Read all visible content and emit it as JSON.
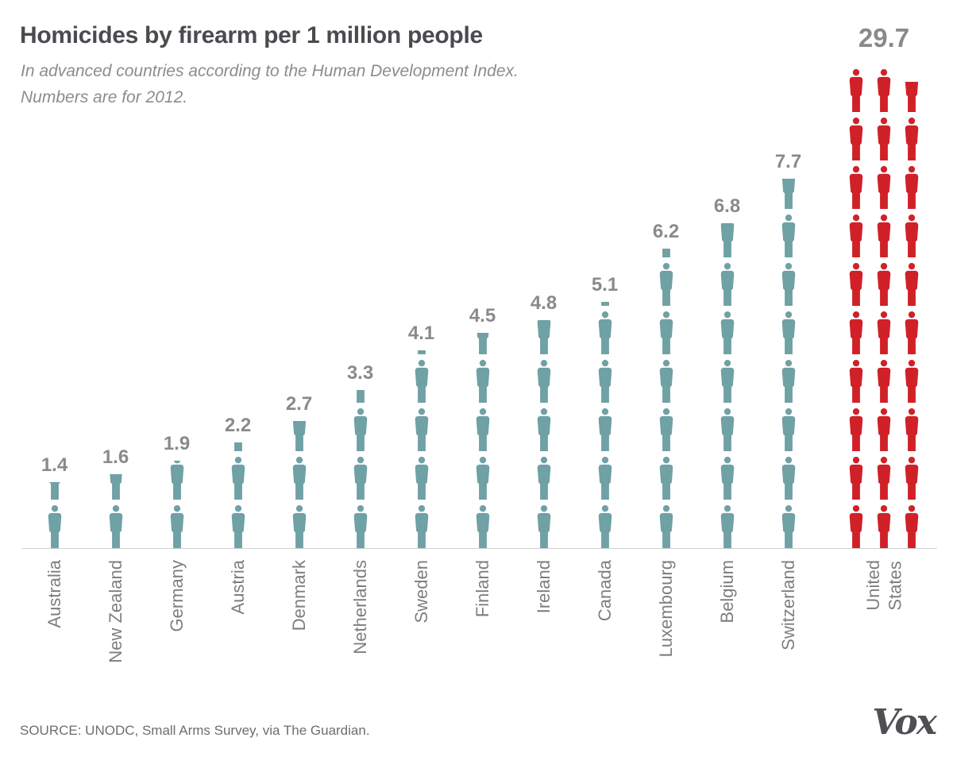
{
  "header": {
    "title": "Homicides by firearm per 1 million people",
    "subtitle_line1": "In advanced countries according to the Human Development Index.",
    "subtitle_line2": "Numbers are for 2012."
  },
  "chart_data": {
    "type": "bar",
    "subtype": "pictogram",
    "title": "Homicides by firearm per 1 million people",
    "unit_per_icon": 1,
    "categories": [
      "Australia",
      "New Zealand",
      "Germany",
      "Austria",
      "Denmark",
      "Netherlands",
      "Sweden",
      "Finland",
      "Ireland",
      "Canada",
      "Luxembourg",
      "Belgium",
      "Switzerland",
      "United States"
    ],
    "category_display": [
      "Australia",
      "New Zealand",
      "Germany",
      "Austria",
      "Denmark",
      "Netherlands",
      "Sweden",
      "Finland",
      "Ireland",
      "Canada",
      "Luxembourg",
      "Belgium",
      "Switzerland",
      "United\nStates"
    ],
    "values": [
      1.4,
      1.6,
      1.9,
      2.2,
      2.7,
      3.3,
      4.1,
      4.5,
      4.8,
      5.1,
      6.2,
      6.8,
      7.7,
      29.7
    ],
    "highlight_category": "United States",
    "highlight_sub_columns": 3,
    "icons_per_sub_column": 10,
    "colors": {
      "default": "#6FA1A5",
      "highlight": "#D02128"
    },
    "value_label_color": "#8A8A8A",
    "baseline_color": "#CFCFCF",
    "legend_position": "none",
    "grid": false
  },
  "footer": {
    "source": "SOURCE: UNODC, Small Arms Survey, via The Guardian.",
    "logo": "Vox"
  }
}
